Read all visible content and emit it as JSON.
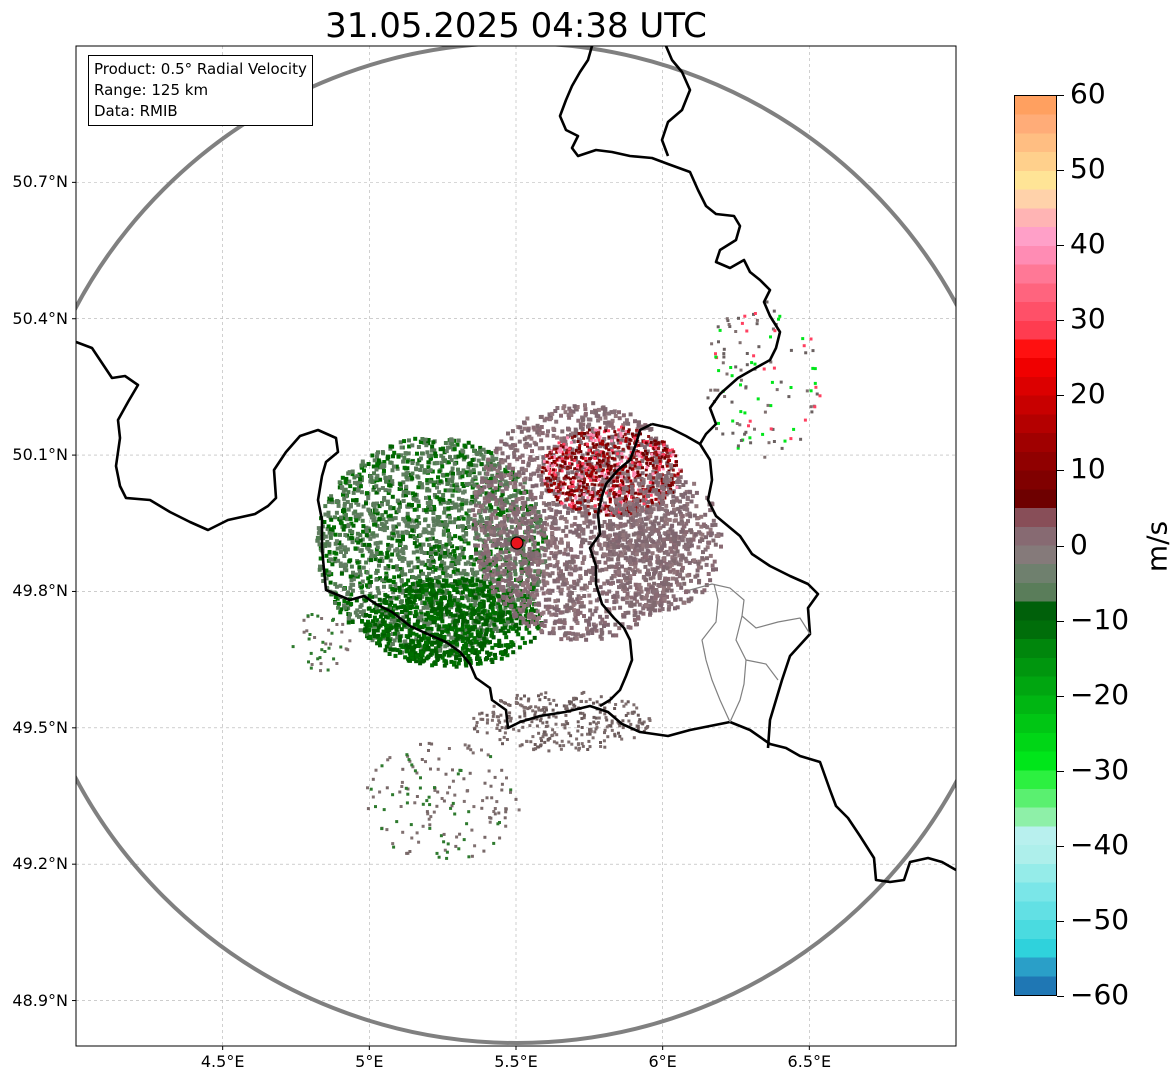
{
  "title": "31.05.2025 04:38 UTC",
  "info_box": {
    "product": "Product: 0.5° Radial Velocity",
    "range": "Range: 125 km",
    "data_source": "Data: RMIB"
  },
  "map": {
    "lon_range": [
      4.0,
      7.0
    ],
    "lat_range": [
      48.8,
      51.0
    ],
    "x_ticks": [
      {
        "lon": 4.5,
        "label": "4.5°E"
      },
      {
        "lon": 5.0,
        "label": "5°E"
      },
      {
        "lon": 5.5,
        "label": "5.5°E"
      },
      {
        "lon": 6.0,
        "label": "6°E"
      },
      {
        "lon": 6.5,
        "label": "6.5°E"
      }
    ],
    "y_ticks": [
      {
        "lat": 50.7,
        "label": "50.7°N"
      },
      {
        "lat": 50.4,
        "label": "50.4°N"
      },
      {
        "lat": 50.1,
        "label": "50.1°N"
      },
      {
        "lat": 49.8,
        "label": "49.8°N"
      },
      {
        "lat": 49.5,
        "label": "49.5°N"
      },
      {
        "lat": 49.2,
        "label": "49.2°N"
      },
      {
        "lat": 48.9,
        "label": "48.9°N"
      }
    ],
    "radar_site": {
      "lon": 5.505,
      "lat": 49.915,
      "color": "#e8141c"
    },
    "range_ring_color": "#808080",
    "border_color": "#000000"
  },
  "colorbar": {
    "unit": "m/s",
    "min": -60,
    "max": 60,
    "ticks": [
      {
        "value": 60,
        "label": "60"
      },
      {
        "value": 50,
        "label": "50"
      },
      {
        "value": 40,
        "label": "40"
      },
      {
        "value": 30,
        "label": "30"
      },
      {
        "value": 20,
        "label": "20"
      },
      {
        "value": 10,
        "label": "10"
      },
      {
        "value": 0,
        "label": "0"
      },
      {
        "value": -10,
        "label": "−10"
      },
      {
        "value": -20,
        "label": "−20"
      },
      {
        "value": -30,
        "label": "−30"
      },
      {
        "value": -40,
        "label": "−40"
      },
      {
        "value": -50,
        "label": "−50"
      },
      {
        "value": -60,
        "label": "−60"
      }
    ],
    "colors": [
      "#1f77b4",
      "#2a9fc8",
      "#2fd2dc",
      "#4adbe0",
      "#62e0e4",
      "#7ae6e8",
      "#95ece9",
      "#aeefeb",
      "#b8f0ee",
      "#8ef0a8",
      "#5af070",
      "#2cf040",
      "#00e61a",
      "#00d616",
      "#00c614",
      "#00b612",
      "#00a610",
      "#00960e",
      "#00860c",
      "#006e0a",
      "#00600a",
      "#5a7d5a",
      "#6f806e",
      "#857a7a",
      "#876a72",
      "#884e58",
      "#6e0000",
      "#800000",
      "#900000",
      "#a00000",
      "#b40000",
      "#c80000",
      "#dc0000",
      "#f00000",
      "#ff1010",
      "#ff3c50",
      "#ff5068",
      "#ff647e",
      "#ff7896",
      "#ff8cb4",
      "#ffa0c8",
      "#ffb4b4",
      "#ffd2aa",
      "#ffe496",
      "#ffd08c",
      "#ffbe82",
      "#ffac78",
      "#ffa060"
    ]
  }
}
